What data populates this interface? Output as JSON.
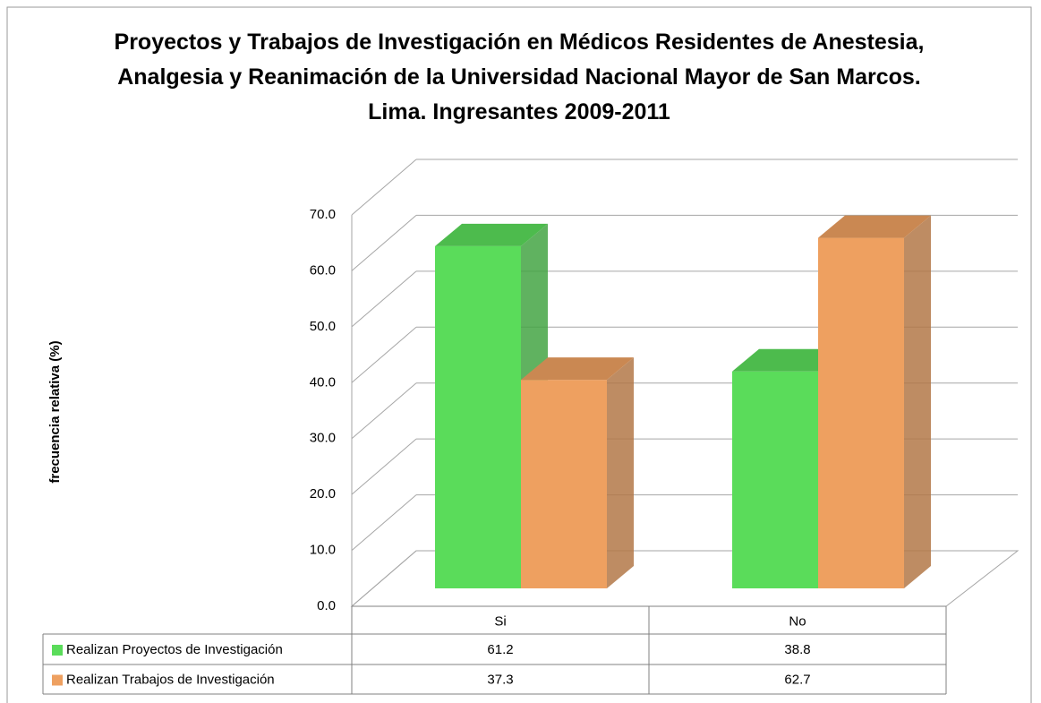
{
  "chart_data": {
    "type": "bar3d",
    "title": "Proyectos y Trabajos de Investigación en Médicos Residentes de Anestesia, Analgesia y Reanimación de la Universidad Nacional Mayor de San Marcos. Lima. Ingresantes 2009-2011",
    "y_label": "frecuencia  relativa (%)",
    "categories": [
      "Si",
      "No"
    ],
    "series": [
      {
        "name": "Realizan Proyectos de Investigación",
        "color": "#5adc5a",
        "values": [
          61.2,
          38.8
        ]
      },
      {
        "name": "Realizan Trabajos de Investigación",
        "color": "#eea060",
        "values": [
          37.3,
          62.7
        ]
      }
    ],
    "ylim": [
      0,
      70
    ],
    "yticks": [
      {
        "value": 0,
        "label": "0.0"
      },
      {
        "value": 10,
        "label": "10.0"
      },
      {
        "value": 20,
        "label": "20.0"
      },
      {
        "value": 30,
        "label": "30.0"
      },
      {
        "value": 40,
        "label": "40.0"
      },
      {
        "value": 50,
        "label": "50.0"
      },
      {
        "value": 60,
        "label": "60.0"
      },
      {
        "value": 70,
        "label": "70.0"
      }
    ],
    "grid": true,
    "data_table": true
  }
}
